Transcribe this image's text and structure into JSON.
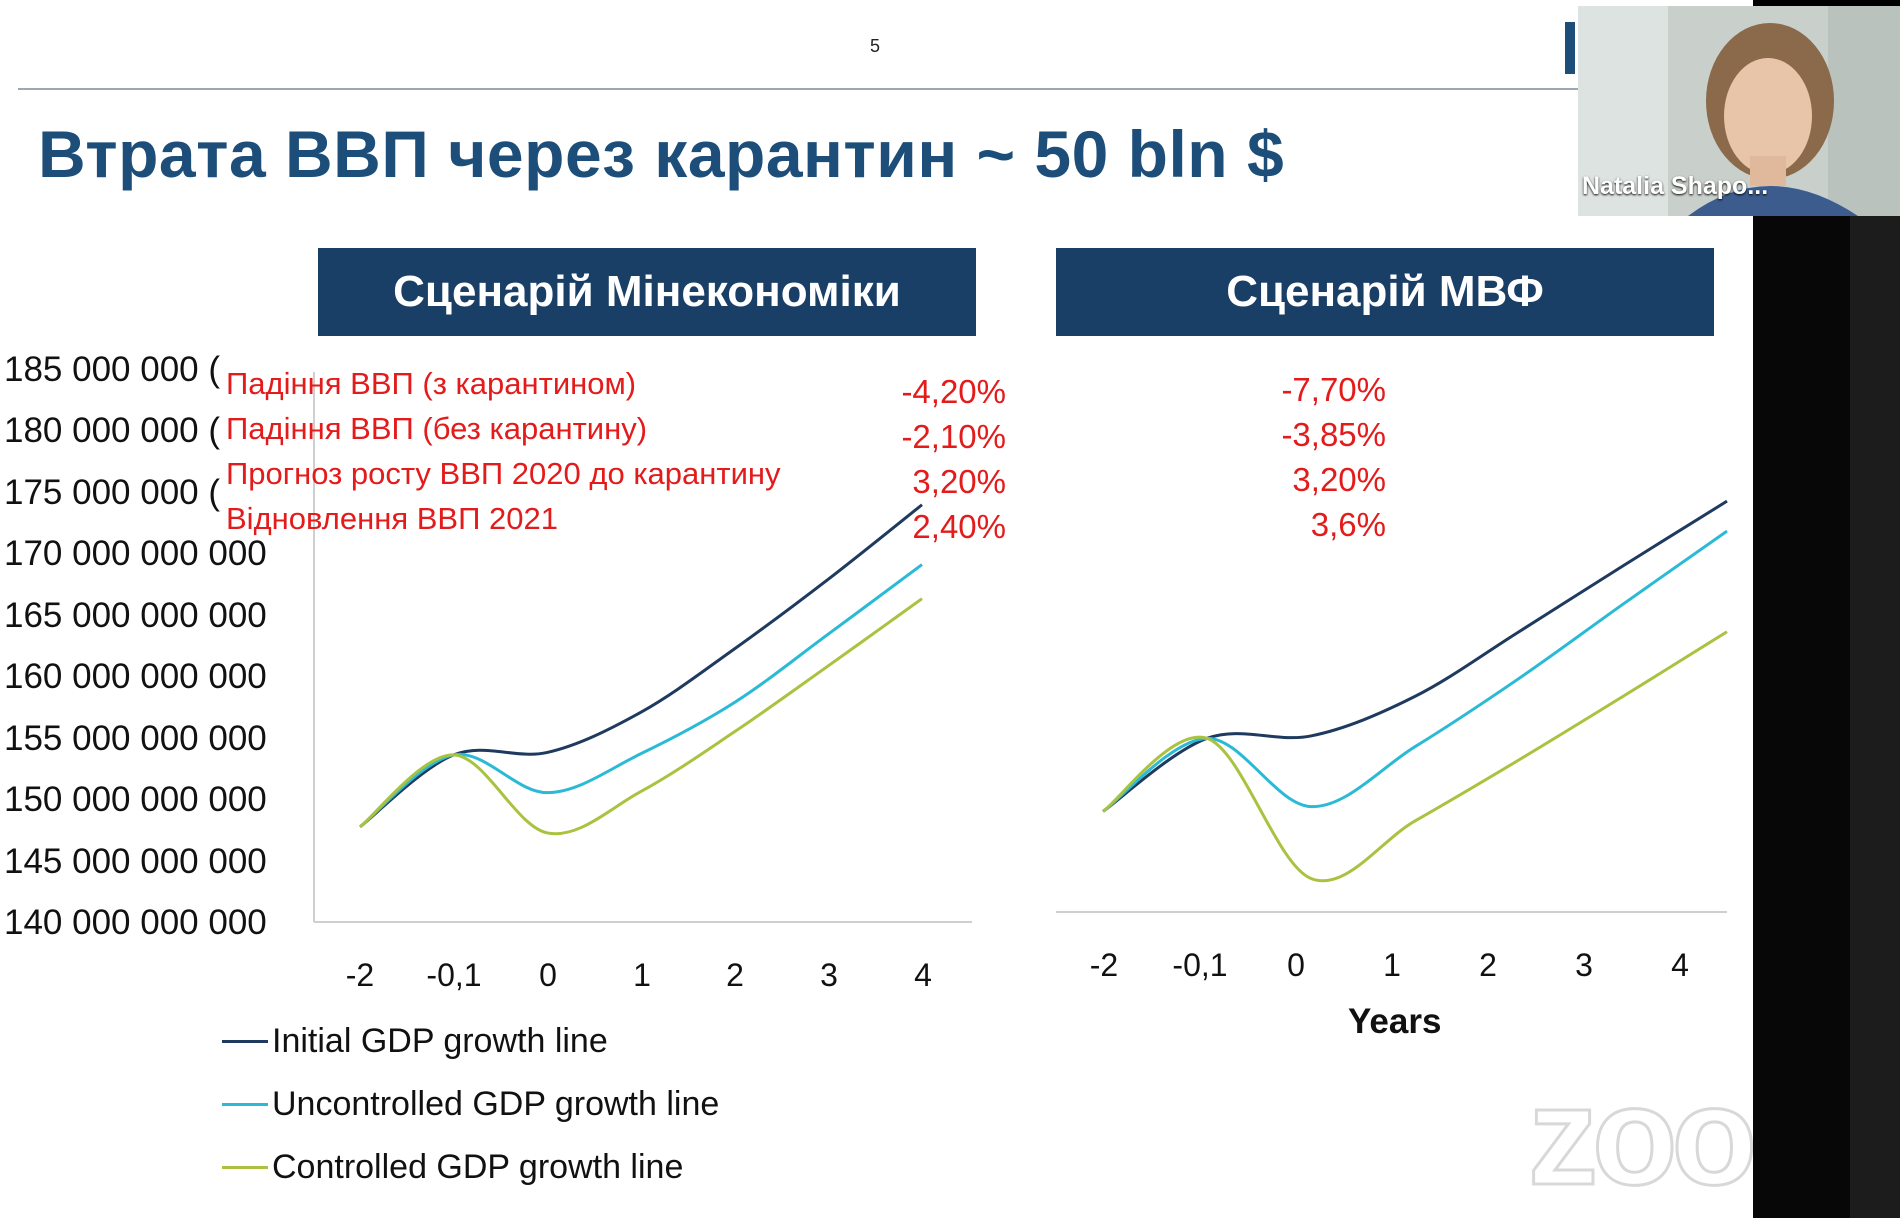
{
  "slide": {
    "page_number": "5",
    "title": "Втрата ВВП через карантин ~ 50 bln $"
  },
  "scenarios": {
    "left": {
      "header": "Сценарій Мінекономіки"
    },
    "right": {
      "header": "Сценарій МВФ"
    }
  },
  "annotations": {
    "labels": [
      "Падіння ВВП (з карантином)",
      "Падіння ВВП (без карантину)",
      "Прогноз росту ВВП 2020 до карантину",
      "Відновлення ВВП 2021"
    ],
    "left_values": [
      "-4,20%",
      "-2,10%",
      "3,20%",
      "2,40%"
    ],
    "right_values": [
      "-7,70%",
      "-3,85%",
      "3,20%",
      "3,6%"
    ]
  },
  "legend": {
    "items": [
      {
        "label": "Initial GDP growth line",
        "color": "#1f3a5f"
      },
      {
        "label": "Uncontrolled GDP growth line",
        "color": "#2bbad6"
      },
      {
        "label": "Controlled GDP growth line",
        "color": "#a9c23f"
      }
    ]
  },
  "video": {
    "participant_name": "Natalia Shapo..."
  },
  "watermark": {
    "text": "zoom"
  },
  "chart_data": [
    {
      "type": "line",
      "title": "Сценарій Мінекономіки",
      "xlabel": "",
      "ylabel": "",
      "y_tick_labels": [
        "185 000 000 (",
        "180 000 000 (",
        "175 000 000 (",
        "170 000 000 000",
        "165 000 000 000",
        "160 000 000 000",
        "155 000 000 000",
        "150 000 000 000",
        "145 000 000 000",
        "140 000 000 000"
      ],
      "ylim": [
        140000000000,
        185000000000
      ],
      "x": [
        "-2",
        "-0,1",
        "0",
        "1",
        "2",
        "3",
        "4"
      ],
      "series": [
        {
          "name": "Initial GDP growth line",
          "color": "#1f3a5f",
          "values": [
            147800000000,
            153700000000,
            153900000000,
            157200000000,
            162400000000,
            168100000000,
            174200000000
          ]
        },
        {
          "name": "Uncontrolled GDP growth line",
          "color": "#2bbad6",
          "values": [
            147800000000,
            153700000000,
            150600000000,
            153800000000,
            158000000000,
            163600000000,
            169300000000
          ]
        },
        {
          "name": "Controlled GDP growth line",
          "color": "#a9c23f",
          "values": [
            147800000000,
            153700000000,
            147300000000,
            150700000000,
            155600000000,
            161000000000,
            166500000000
          ]
        }
      ],
      "grid": false
    },
    {
      "type": "line",
      "title": "Сценарій МВФ",
      "xlabel": "Years",
      "ylabel": "",
      "ylim": [
        140000000000,
        185000000000
      ],
      "x": [
        "-2",
        "-0,1",
        "0",
        "1",
        "2",
        "3",
        "4"
      ],
      "series": [
        {
          "name": "Initial GDP growth line",
          "color": "#1f3a5f",
          "values": [
            148400000000,
            154500000000,
            154700000000,
            158000000000,
            163400000000,
            168900000000,
            174300000000
          ]
        },
        {
          "name": "Uncontrolled GDP growth line",
          "color": "#2bbad6",
          "values": [
            148400000000,
            154500000000,
            148800000000,
            153800000000,
            159500000000,
            165700000000,
            171800000000
          ]
        },
        {
          "name": "Controlled GDP growth line",
          "color": "#a9c23f",
          "values": [
            148400000000,
            154500000000,
            142800000000,
            147600000000,
            152700000000,
            158000000000,
            163400000000
          ]
        }
      ],
      "grid": false
    }
  ]
}
